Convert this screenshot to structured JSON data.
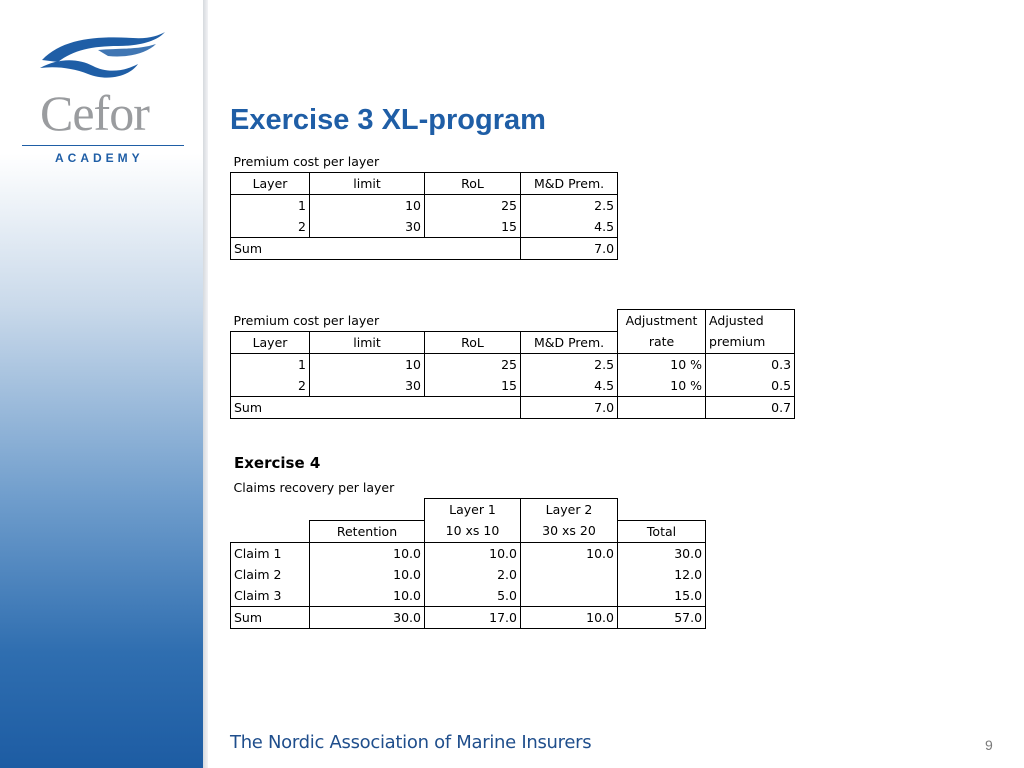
{
  "logo": {
    "name": "Cefor",
    "subtitle": "ACADEMY"
  },
  "title": "Exercise 3 XL-program",
  "table1": {
    "caption": "Premium cost per layer",
    "headers": [
      "Layer",
      "limit",
      "RoL",
      "M&D Prem."
    ],
    "rows": [
      [
        "1",
        "10",
        "25",
        "2.5"
      ],
      [
        "2",
        "30",
        "15",
        "4.5"
      ]
    ],
    "sum_label": "Sum",
    "sum_value": "7.0"
  },
  "table2": {
    "caption": "Premium cost per layer",
    "header_top": [
      "Adjustment",
      "Adjusted"
    ],
    "headers": [
      "Layer",
      "limit",
      "RoL",
      "M&D Prem.",
      "rate",
      "premium"
    ],
    "rows": [
      [
        "1",
        "10",
        "25",
        "2.5",
        "10 %",
        "0.3"
      ],
      [
        "2",
        "30",
        "15",
        "4.5",
        "10 %",
        "0.5"
      ]
    ],
    "sum_label": "Sum",
    "sum_value": "7.0",
    "sum_adjusted": "0.7"
  },
  "exercise4": {
    "heading": "Exercise 4",
    "caption": "Claims recovery per layer",
    "header_top": [
      "Layer 1",
      "Layer 2"
    ],
    "headers": [
      "Retention",
      "10 xs 10",
      "30 xs 20",
      "Total"
    ],
    "rows": [
      [
        "Claim 1",
        "10.0",
        "10.0",
        "10.0",
        "30.0"
      ],
      [
        "Claim 2",
        "10.0",
        "2.0",
        "",
        "12.0"
      ],
      [
        "Claim 3",
        "10.0",
        "5.0",
        "",
        "15.0"
      ]
    ],
    "sum_row": [
      "Sum",
      "30.0",
      "17.0",
      "10.0",
      "57.0"
    ]
  },
  "footer": "The Nordic Association of Marine Insurers",
  "page_number": "9",
  "colors": {
    "brand_blue": "#1f5ea6",
    "logo_gray": "#9a9c9f"
  }
}
